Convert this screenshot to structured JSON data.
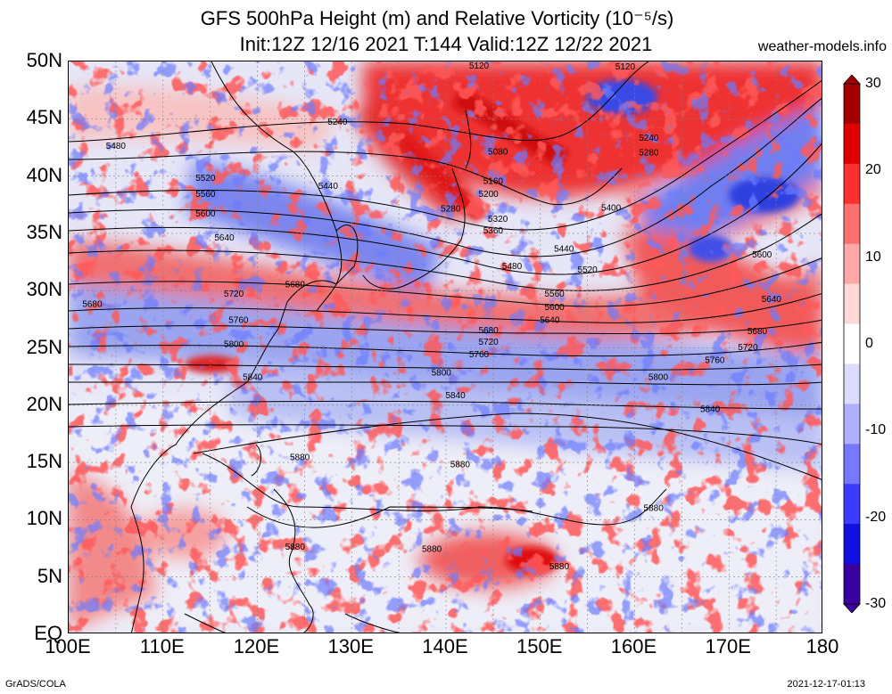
{
  "title_line1": "GFS 500hPa Height (m) and Relative Vorticity (10⁻⁵/s)",
  "title_line2": "Init:12Z 12/16 2021 T:144 Valid:12Z 12/22 2021",
  "site": "weather-models.info",
  "footer_left": "GrADS/COLA",
  "footer_right": "2021-12-17-01:13",
  "lat_labels": [
    "50N",
    "45N",
    "40N",
    "35N",
    "30N",
    "25N",
    "20N",
    "15N",
    "10N",
    "5N",
    "EQ"
  ],
  "lon_labels": [
    "100E",
    "110E",
    "120E",
    "130E",
    "140E",
    "150E",
    "160E",
    "170E",
    "180"
  ],
  "colorbar": {
    "ticks": [
      "30",
      "20",
      "10",
      "0",
      "-10",
      "-20",
      "-30"
    ],
    "colors": [
      "#a50000",
      "#e00000",
      "#ff3030",
      "#ff7070",
      "#ffa8a8",
      "#ffd8d8",
      "#ffffff",
      "#dcdcff",
      "#b0b0ff",
      "#7878ff",
      "#3c3cff",
      "#1010e0",
      "#3a00a0"
    ]
  },
  "colors": {
    "positive_vorticity": "#e8202a",
    "negative_vorticity": "#2a3ae8",
    "contour": "#000000"
  },
  "contour_labels": [
    {
      "text": "5120",
      "lon": 143.5,
      "lat": 49.7
    },
    {
      "text": "5120",
      "lon": 159.0,
      "lat": 49.6
    },
    {
      "text": "5480",
      "lon": 105.0,
      "lat": 42.7
    },
    {
      "text": "5240",
      "lon": 128.5,
      "lat": 44.8
    },
    {
      "text": "5080",
      "lon": 145.5,
      "lat": 42.2
    },
    {
      "text": "5240",
      "lon": 161.5,
      "lat": 43.4
    },
    {
      "text": "5280",
      "lon": 161.5,
      "lat": 42.1
    },
    {
      "text": "5520",
      "lon": 114.5,
      "lat": 39.9
    },
    {
      "text": "5560",
      "lon": 114.5,
      "lat": 38.5
    },
    {
      "text": "5440",
      "lon": 127.5,
      "lat": 39.2
    },
    {
      "text": "5160",
      "lon": 145.0,
      "lat": 39.6
    },
    {
      "text": "5200",
      "lon": 144.5,
      "lat": 38.5
    },
    {
      "text": "5280",
      "lon": 140.5,
      "lat": 37.2
    },
    {
      "text": "5400",
      "lon": 157.5,
      "lat": 37.3
    },
    {
      "text": "5600",
      "lon": 114.5,
      "lat": 36.8
    },
    {
      "text": "5320",
      "lon": 145.5,
      "lat": 36.3
    },
    {
      "text": "5360",
      "lon": 145.0,
      "lat": 35.3
    },
    {
      "text": "5640",
      "lon": 116.5,
      "lat": 34.7
    },
    {
      "text": "5440",
      "lon": 152.5,
      "lat": 33.7
    },
    {
      "text": "5600",
      "lon": 173.5,
      "lat": 33.2
    },
    {
      "text": "5480",
      "lon": 147.0,
      "lat": 32.2
    },
    {
      "text": "5520",
      "lon": 155.0,
      "lat": 31.9
    },
    {
      "text": "5680",
      "lon": 124.0,
      "lat": 30.6
    },
    {
      "text": "5720",
      "lon": 117.5,
      "lat": 29.8
    },
    {
      "text": "5560",
      "lon": 151.5,
      "lat": 29.8
    },
    {
      "text": "5640",
      "lon": 174.5,
      "lat": 29.3
    },
    {
      "text": "5680",
      "lon": 102.5,
      "lat": 28.9
    },
    {
      "text": "5600",
      "lon": 151.5,
      "lat": 28.6
    },
    {
      "text": "5760",
      "lon": 118.0,
      "lat": 27.5
    },
    {
      "text": "5640",
      "lon": 151.0,
      "lat": 27.5
    },
    {
      "text": "5680",
      "lon": 144.5,
      "lat": 26.6
    },
    {
      "text": "5680",
      "lon": 173.0,
      "lat": 26.5
    },
    {
      "text": "5720",
      "lon": 144.5,
      "lat": 25.6
    },
    {
      "text": "5800",
      "lon": 117.5,
      "lat": 25.4
    },
    {
      "text": "5720",
      "lon": 172.0,
      "lat": 25.1
    },
    {
      "text": "5760",
      "lon": 143.5,
      "lat": 24.5
    },
    {
      "text": "5760",
      "lon": 168.5,
      "lat": 24.0
    },
    {
      "text": "5800",
      "lon": 139.5,
      "lat": 22.9
    },
    {
      "text": "5840",
      "lon": 119.5,
      "lat": 22.5
    },
    {
      "text": "5800",
      "lon": 162.5,
      "lat": 22.5
    },
    {
      "text": "5840",
      "lon": 141.0,
      "lat": 20.9
    },
    {
      "text": "5840",
      "lon": 168.0,
      "lat": 19.7
    },
    {
      "text": "5880",
      "lon": 124.5,
      "lat": 15.5
    },
    {
      "text": "5880",
      "lon": 141.5,
      "lat": 14.9
    },
    {
      "text": "5880",
      "lon": 162.0,
      "lat": 11.1
    },
    {
      "text": "5880",
      "lon": 124.0,
      "lat": 7.7
    },
    {
      "text": "5880",
      "lon": 138.5,
      "lat": 7.5
    },
    {
      "text": "5880",
      "lon": 152.0,
      "lat": 6.0
    }
  ]
}
